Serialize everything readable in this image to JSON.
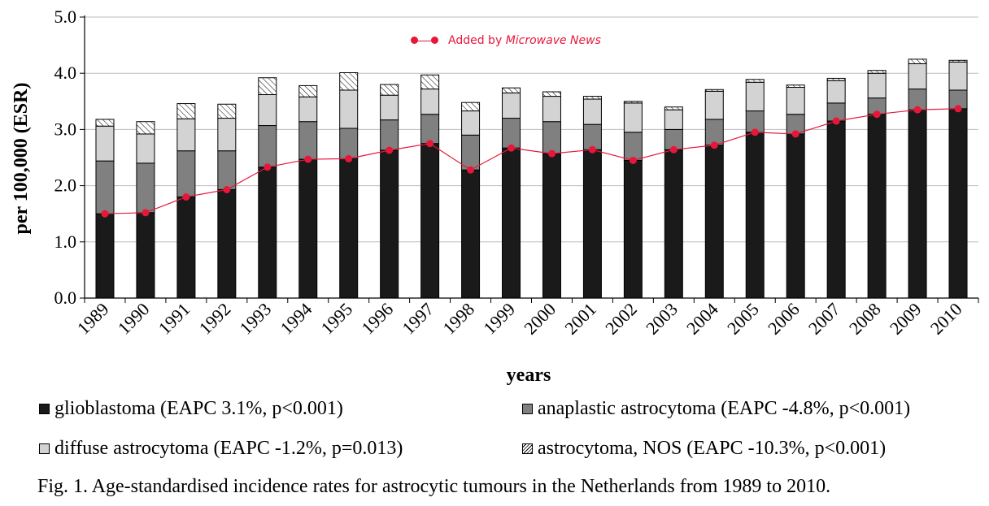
{
  "chart_data": {
    "type": "bar",
    "stacked": true,
    "xlabel": "years",
    "ylabel": "per 100,000 (ESR)",
    "ylim": [
      0,
      5
    ],
    "yticks": [
      "0.0",
      "1.0",
      "2.0",
      "3.0",
      "4.0",
      "5.0"
    ],
    "grid": true,
    "categories": [
      "1989",
      "1990",
      "1991",
      "1992",
      "1993",
      "1994",
      "1995",
      "1996",
      "1997",
      "1998",
      "1999",
      "2000",
      "2001",
      "2002",
      "2003",
      "2004",
      "2005",
      "2006",
      "2007",
      "2008",
      "2009",
      "2010"
    ],
    "series": [
      {
        "name": "glioblastoma (EAPC 3.1%, p<0.001)",
        "color": "#1a1a1a",
        "values": [
          1.5,
          1.52,
          1.8,
          1.93,
          2.33,
          2.47,
          2.48,
          2.63,
          2.75,
          2.28,
          2.67,
          2.57,
          2.64,
          2.45,
          2.64,
          2.72,
          2.95,
          2.92,
          3.15,
          3.27,
          3.35,
          3.37
        ]
      },
      {
        "name": "anaplastic astrocytoma (EAPC -4.8%, p<0.001)",
        "color": "#808080",
        "values": [
          0.94,
          0.88,
          0.82,
          0.69,
          0.74,
          0.67,
          0.54,
          0.54,
          0.52,
          0.62,
          0.53,
          0.57,
          0.45,
          0.5,
          0.36,
          0.46,
          0.38,
          0.35,
          0.32,
          0.29,
          0.37,
          0.33
        ]
      },
      {
        "name": "diffuse astrocytoma (EAPC -1.2%, p=0.013)",
        "color": "#d3d3d3",
        "values": [
          0.62,
          0.52,
          0.57,
          0.58,
          0.55,
          0.44,
          0.68,
          0.44,
          0.45,
          0.43,
          0.45,
          0.45,
          0.45,
          0.52,
          0.35,
          0.5,
          0.51,
          0.48,
          0.4,
          0.44,
          0.45,
          0.5
        ]
      },
      {
        "name": "astrocytoma, NOS (EAPC -10.3%, p<0.001)",
        "color": "#ffffff",
        "pattern": "hatch",
        "values": [
          0.12,
          0.22,
          0.27,
          0.25,
          0.3,
          0.2,
          0.31,
          0.19,
          0.25,
          0.15,
          0.09,
          0.08,
          0.05,
          0.03,
          0.05,
          0.03,
          0.05,
          0.04,
          0.04,
          0.05,
          0.08,
          0.03
        ]
      }
    ],
    "overlay": {
      "type": "line",
      "color": "#e8173a",
      "values": [
        1.5,
        1.52,
        1.8,
        1.93,
        2.33,
        2.47,
        2.48,
        2.63,
        2.75,
        2.28,
        2.67,
        2.57,
        2.64,
        2.45,
        2.64,
        2.72,
        2.95,
        2.92,
        3.15,
        3.27,
        3.35,
        3.37
      ]
    },
    "annotation": {
      "text_prefix": "Added by ",
      "text_emphasis": "Microwave News"
    },
    "legend_position": "bottom",
    "caption": "Fig. 1.  Age-standardised incidence rates for astrocytic tumours in the Netherlands from 1989 to 2010."
  }
}
